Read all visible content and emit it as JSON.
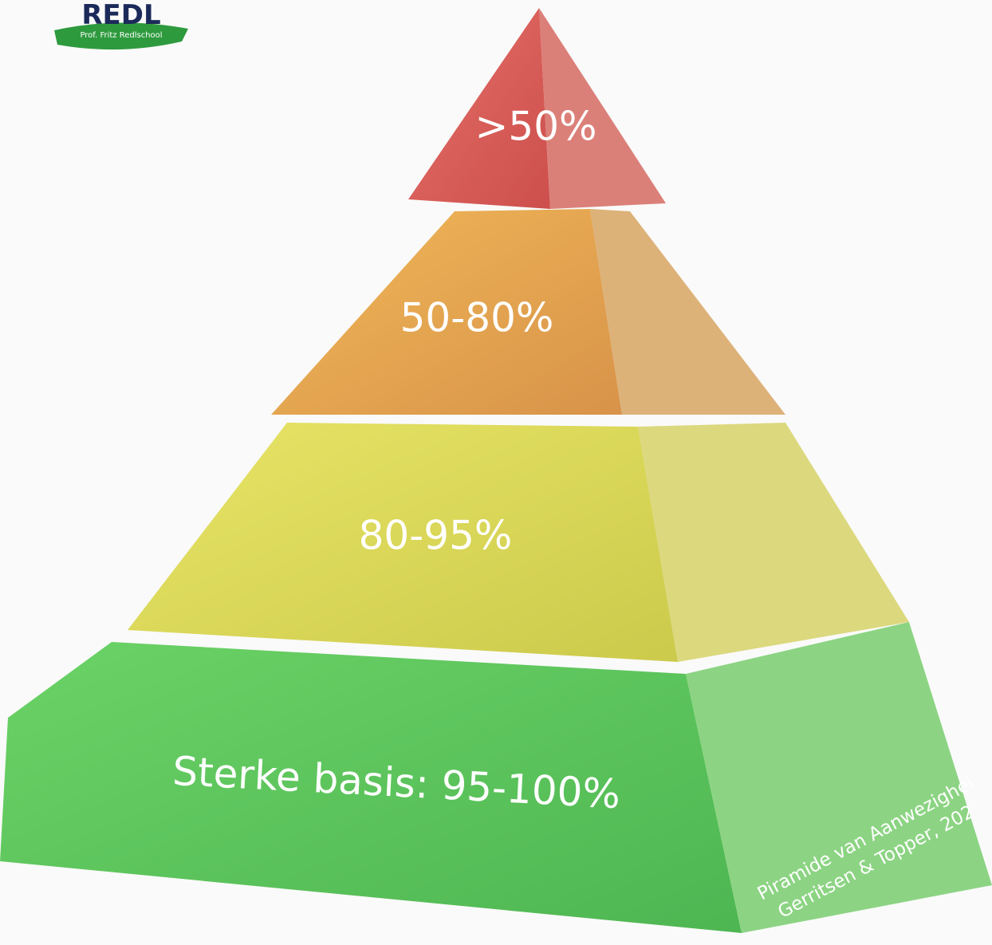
{
  "logo": {
    "name": "REDL",
    "subtitle": "Prof. Fritz Redlschool"
  },
  "pyramid": {
    "levels": [
      ">50%",
      "50-80%",
      "80-95%",
      "Sterke basis: 95-100%"
    ]
  },
  "caption": {
    "lines": [
      "Piramide van Aanwezighei",
      "Gerritsen & Topper, 202"
    ]
  }
}
